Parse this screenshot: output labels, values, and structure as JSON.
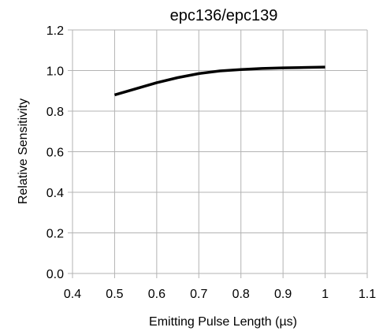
{
  "chart_data": {
    "type": "line",
    "title": "epc136/epc139",
    "xlabel": "Emitting Pulse Length (µs)",
    "ylabel": "Relative Sensitivity",
    "xlim": [
      0.4,
      1.1
    ],
    "ylim": [
      0.0,
      1.2
    ],
    "x_ticks": [
      "0.4",
      "0.5",
      "0.6",
      "0.7",
      "0.8",
      "0.9",
      "1",
      "1.1"
    ],
    "y_ticks": [
      "0.0",
      "0.2",
      "0.4",
      "0.6",
      "0.8",
      "1.0",
      "1.2"
    ],
    "grid": true,
    "series": [
      {
        "color": "#000000",
        "x": [
          0.5,
          0.55,
          0.6,
          0.65,
          0.7,
          0.75,
          0.8,
          0.85,
          0.9,
          0.95,
          1.0
        ],
        "y": [
          0.88,
          0.91,
          0.94,
          0.965,
          0.985,
          0.998,
          1.005,
          1.01,
          1.013,
          1.015,
          1.017
        ]
      }
    ]
  }
}
